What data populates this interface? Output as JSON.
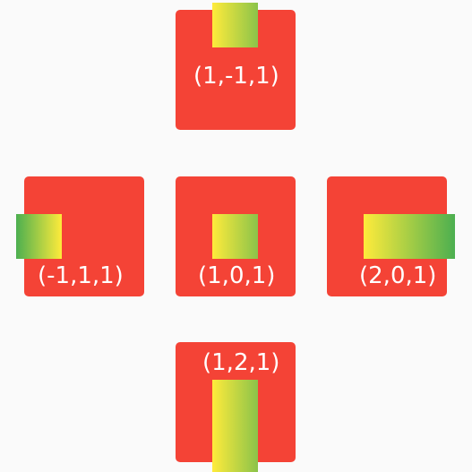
{
  "tiles": {
    "top": {
      "label": "(1,-1,1)"
    },
    "left": {
      "label": "(-1,1,1)"
    },
    "center": {
      "label": "(1,0,1)"
    },
    "right": {
      "label": "(2,0,1)"
    },
    "bottom": {
      "label": "(1,2,1)"
    }
  },
  "colors": {
    "background": "#fafafa",
    "tile": "#f44336",
    "label": "#ffffff",
    "gradient_yellow": "#ffeb3b",
    "gradient_green": "#4caf50"
  }
}
